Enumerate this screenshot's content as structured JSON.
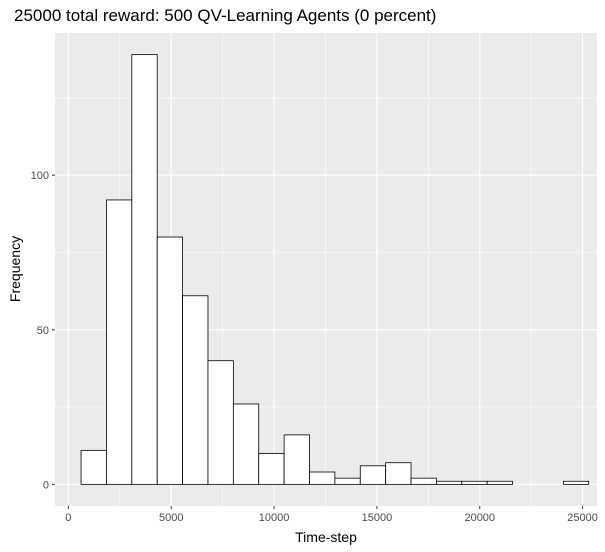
{
  "chart_data": {
    "type": "bar",
    "title": "25000 total reward: 500 QV-Learning Agents (0 percent)",
    "xlabel": "Time-step",
    "ylabel": "Frequency",
    "bin_width": 1234,
    "bins": [
      {
        "x_start": 617,
        "count": 11
      },
      {
        "x_start": 1851,
        "count": 92
      },
      {
        "x_start": 3085,
        "count": 139
      },
      {
        "x_start": 4319,
        "count": 80
      },
      {
        "x_start": 5553,
        "count": 61
      },
      {
        "x_start": 6787,
        "count": 40
      },
      {
        "x_start": 8021,
        "count": 26
      },
      {
        "x_start": 9255,
        "count": 10
      },
      {
        "x_start": 10489,
        "count": 16
      },
      {
        "x_start": 11723,
        "count": 4
      },
      {
        "x_start": 12957,
        "count": 2
      },
      {
        "x_start": 14191,
        "count": 6
      },
      {
        "x_start": 15425,
        "count": 7
      },
      {
        "x_start": 16659,
        "count": 2
      },
      {
        "x_start": 17893,
        "count": 1
      },
      {
        "x_start": 19127,
        "count": 1
      },
      {
        "x_start": 20361,
        "count": 1
      },
      {
        "x_start": 21595,
        "count": 0
      },
      {
        "x_start": 22829,
        "count": 0
      },
      {
        "x_start": 24063,
        "count": 1
      }
    ],
    "xlim": [
      -650,
      25700
    ],
    "ylim": [
      -7,
      146
    ],
    "x_ticks": [
      0,
      5000,
      10000,
      15000,
      20000,
      25000
    ],
    "x_minor_ticks": [
      2500,
      7500,
      12500,
      17500,
      22500
    ],
    "y_ticks": [
      0,
      50,
      100
    ],
    "y_minor_ticks": [
      25,
      75,
      125
    ],
    "x_tick_labels": [
      "0",
      "5000",
      "10000",
      "15000",
      "20000",
      "25000"
    ],
    "y_tick_labels": [
      "0",
      "50",
      "100"
    ],
    "grid": true,
    "panel_color": "#ebebeb",
    "grid_color": "#ffffff",
    "bar_fill": "#ffffff",
    "bar_stroke": "#000000"
  }
}
